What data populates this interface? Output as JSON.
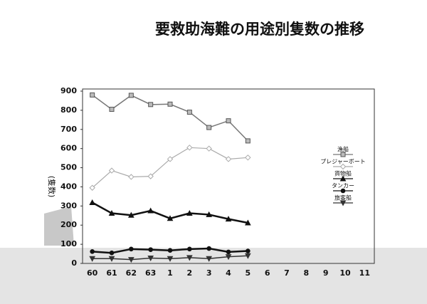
{
  "chart_data": {
    "type": "line",
    "title": "要救助海難の用途別隻数の推移",
    "y_label": "(隻数)",
    "categories": [
      "60",
      "61",
      "62",
      "63",
      "1",
      "2",
      "3",
      "4",
      "5",
      "6",
      "7",
      "8",
      "9",
      "10",
      "11"
    ],
    "series": [
      {
        "name": "漁船",
        "color": "#777777",
        "marker": "square",
        "values": [
          880,
          805,
          878,
          830,
          832,
          790,
          710,
          745,
          640,
          null,
          null,
          null,
          null,
          null,
          null
        ]
      },
      {
        "name": "プレジャーボート",
        "color": "#aaaaaa",
        "marker": "diamond",
        "values": [
          395,
          485,
          452,
          455,
          545,
          605,
          600,
          545,
          553,
          null,
          null,
          null,
          null,
          null,
          null
        ]
      },
      {
        "name": "貨物船",
        "color": "#111111",
        "marker": "triangle",
        "values": [
          318,
          262,
          252,
          275,
          235,
          262,
          255,
          232,
          212,
          null,
          null,
          null,
          null,
          null,
          null
        ]
      },
      {
        "name": "タンカー",
        "color": "#111111",
        "marker": "circle",
        "values": [
          62,
          55,
          75,
          72,
          68,
          75,
          78,
          60,
          65,
          null,
          null,
          null,
          null,
          null,
          null
        ]
      },
      {
        "name": "旅客船",
        "color": "#333333",
        "marker": "down",
        "values": [
          25,
          25,
          20,
          28,
          25,
          30,
          25,
          35,
          40,
          null,
          null,
          null,
          null,
          null,
          null
        ]
      }
    ],
    "ylim": [
      0,
      900
    ],
    "yticks": [
      0,
      100,
      200,
      300,
      400,
      500,
      600,
      700,
      800,
      900
    ]
  }
}
